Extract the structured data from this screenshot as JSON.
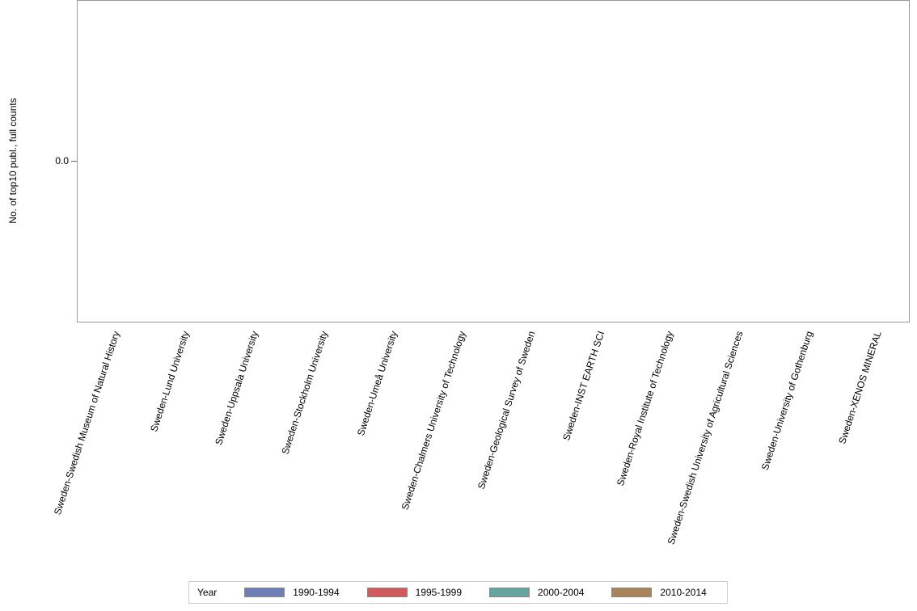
{
  "chart_data": {
    "type": "bar",
    "title": "",
    "xlabel": "",
    "ylabel": "No. of top10 publ., full counts",
    "yticks": [
      "0.0"
    ],
    "ylim": [
      0,
      0
    ],
    "grid": false,
    "legend_position": "bottom",
    "legend_title": "Year",
    "categories": [
      "Sweden-Swedish Museum of Natural History",
      "Sweden-Lund University",
      "Sweden-Uppsala University",
      "Sweden-Stockholm University",
      "Sweden-Umeå University",
      "Sweden-Chalmers University of Technology",
      "Sweden-Geological Survey of Sweden",
      "Sweden-INST EARTH SCI",
      "Sweden-Royal Institute of Technology",
      "Sweden-Swedish University of Agricultural Sciences",
      "Sweden-University of Gothenburg",
      "Sweden-XENOS MINERAL"
    ],
    "series": [
      {
        "name": "1990-1994",
        "color": "#6f7eb3",
        "values": [
          0,
          0,
          0,
          0,
          0,
          0,
          0,
          0,
          0,
          0,
          0,
          0
        ]
      },
      {
        "name": "1995-1999",
        "color": "#d05b5b",
        "values": [
          0,
          0,
          0,
          0,
          0,
          0,
          0,
          0,
          0,
          0,
          0,
          0
        ]
      },
      {
        "name": "2000-2004",
        "color": "#66a5a0",
        "values": [
          0,
          0,
          0,
          0,
          0,
          0,
          0,
          0,
          0,
          0,
          0,
          0
        ]
      },
      {
        "name": "2010-2014",
        "color": "#a9845a",
        "values": [
          0,
          0,
          0,
          0,
          0,
          0,
          0,
          0,
          0,
          0,
          0,
          0
        ]
      }
    ]
  }
}
